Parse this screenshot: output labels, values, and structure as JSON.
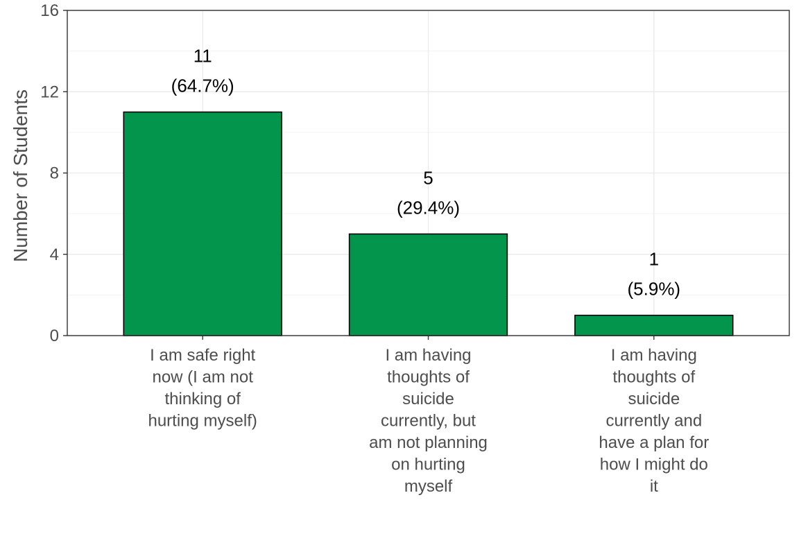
{
  "chart_data": {
    "type": "bar",
    "title": "",
    "xlabel": "",
    "ylabel": "Number of Students",
    "ylim": [
      0,
      16
    ],
    "yticks": [
      0,
      4,
      8,
      12,
      16
    ],
    "grid": true,
    "legend": "none",
    "bar_color": "#03954b",
    "categories": [
      "I am safe right now (I am not thinking of hurting myself)",
      "I am having thoughts of suicide currently, but am not planning on hurting myself",
      "I am having thoughts of suicide currently and have a plan for how I might do it"
    ],
    "category_lines": [
      [
        "I am safe right",
        "now (I am not",
        "thinking of",
        "hurting myself)"
      ],
      [
        "I am having",
        "thoughts of",
        "suicide",
        "currently, but",
        "am not planning",
        "on hurting",
        "myself"
      ],
      [
        "I am having",
        "thoughts of",
        "suicide",
        "currently and",
        "have a plan for",
        "how I might do",
        "it"
      ]
    ],
    "values": [
      11,
      5,
      1
    ],
    "percent_labels": [
      "(64.7%)",
      "(29.4%)",
      "(5.9%)"
    ]
  }
}
